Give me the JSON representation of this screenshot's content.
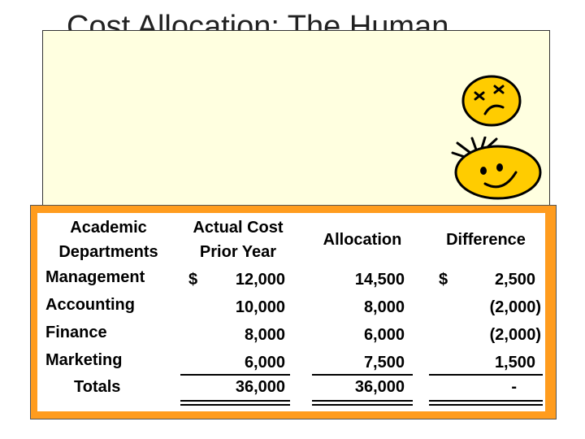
{
  "slide": {
    "title": "Cost Allocation: The Human"
  },
  "icons": {
    "sad_face": "sad-face-icon",
    "happy_face": "happy-face-icon"
  },
  "colors": {
    "panel_fill": "#ffffe0",
    "table_frame": "#ff9c1e",
    "face_fill": "#ffcc00"
  },
  "table": {
    "headers": {
      "col1_line1": "Academic",
      "col1_line2": "Departments",
      "col2_line1": "Actual Cost",
      "col2_line2": "Prior Year",
      "col3": "Allocation",
      "col4": "Difference"
    },
    "rows": [
      {
        "department": "Management",
        "actual_currency": "$",
        "actual": "12,000",
        "allocation": "14,500",
        "diff_currency": "$",
        "difference": "2,500"
      },
      {
        "department": "Accounting",
        "actual_currency": "",
        "actual": "10,000",
        "allocation": "8,000",
        "diff_currency": "",
        "difference": "(2,000)"
      },
      {
        "department": "Finance",
        "actual_currency": "",
        "actual": "8,000",
        "allocation": "6,000",
        "diff_currency": "",
        "difference": "(2,000)"
      },
      {
        "department": "Marketing",
        "actual_currency": "",
        "actual": "6,000",
        "allocation": "7,500",
        "diff_currency": "",
        "difference": "1,500"
      }
    ],
    "totals": {
      "label": "Totals",
      "actual": "36,000",
      "allocation": "36,000",
      "difference": "-"
    }
  }
}
